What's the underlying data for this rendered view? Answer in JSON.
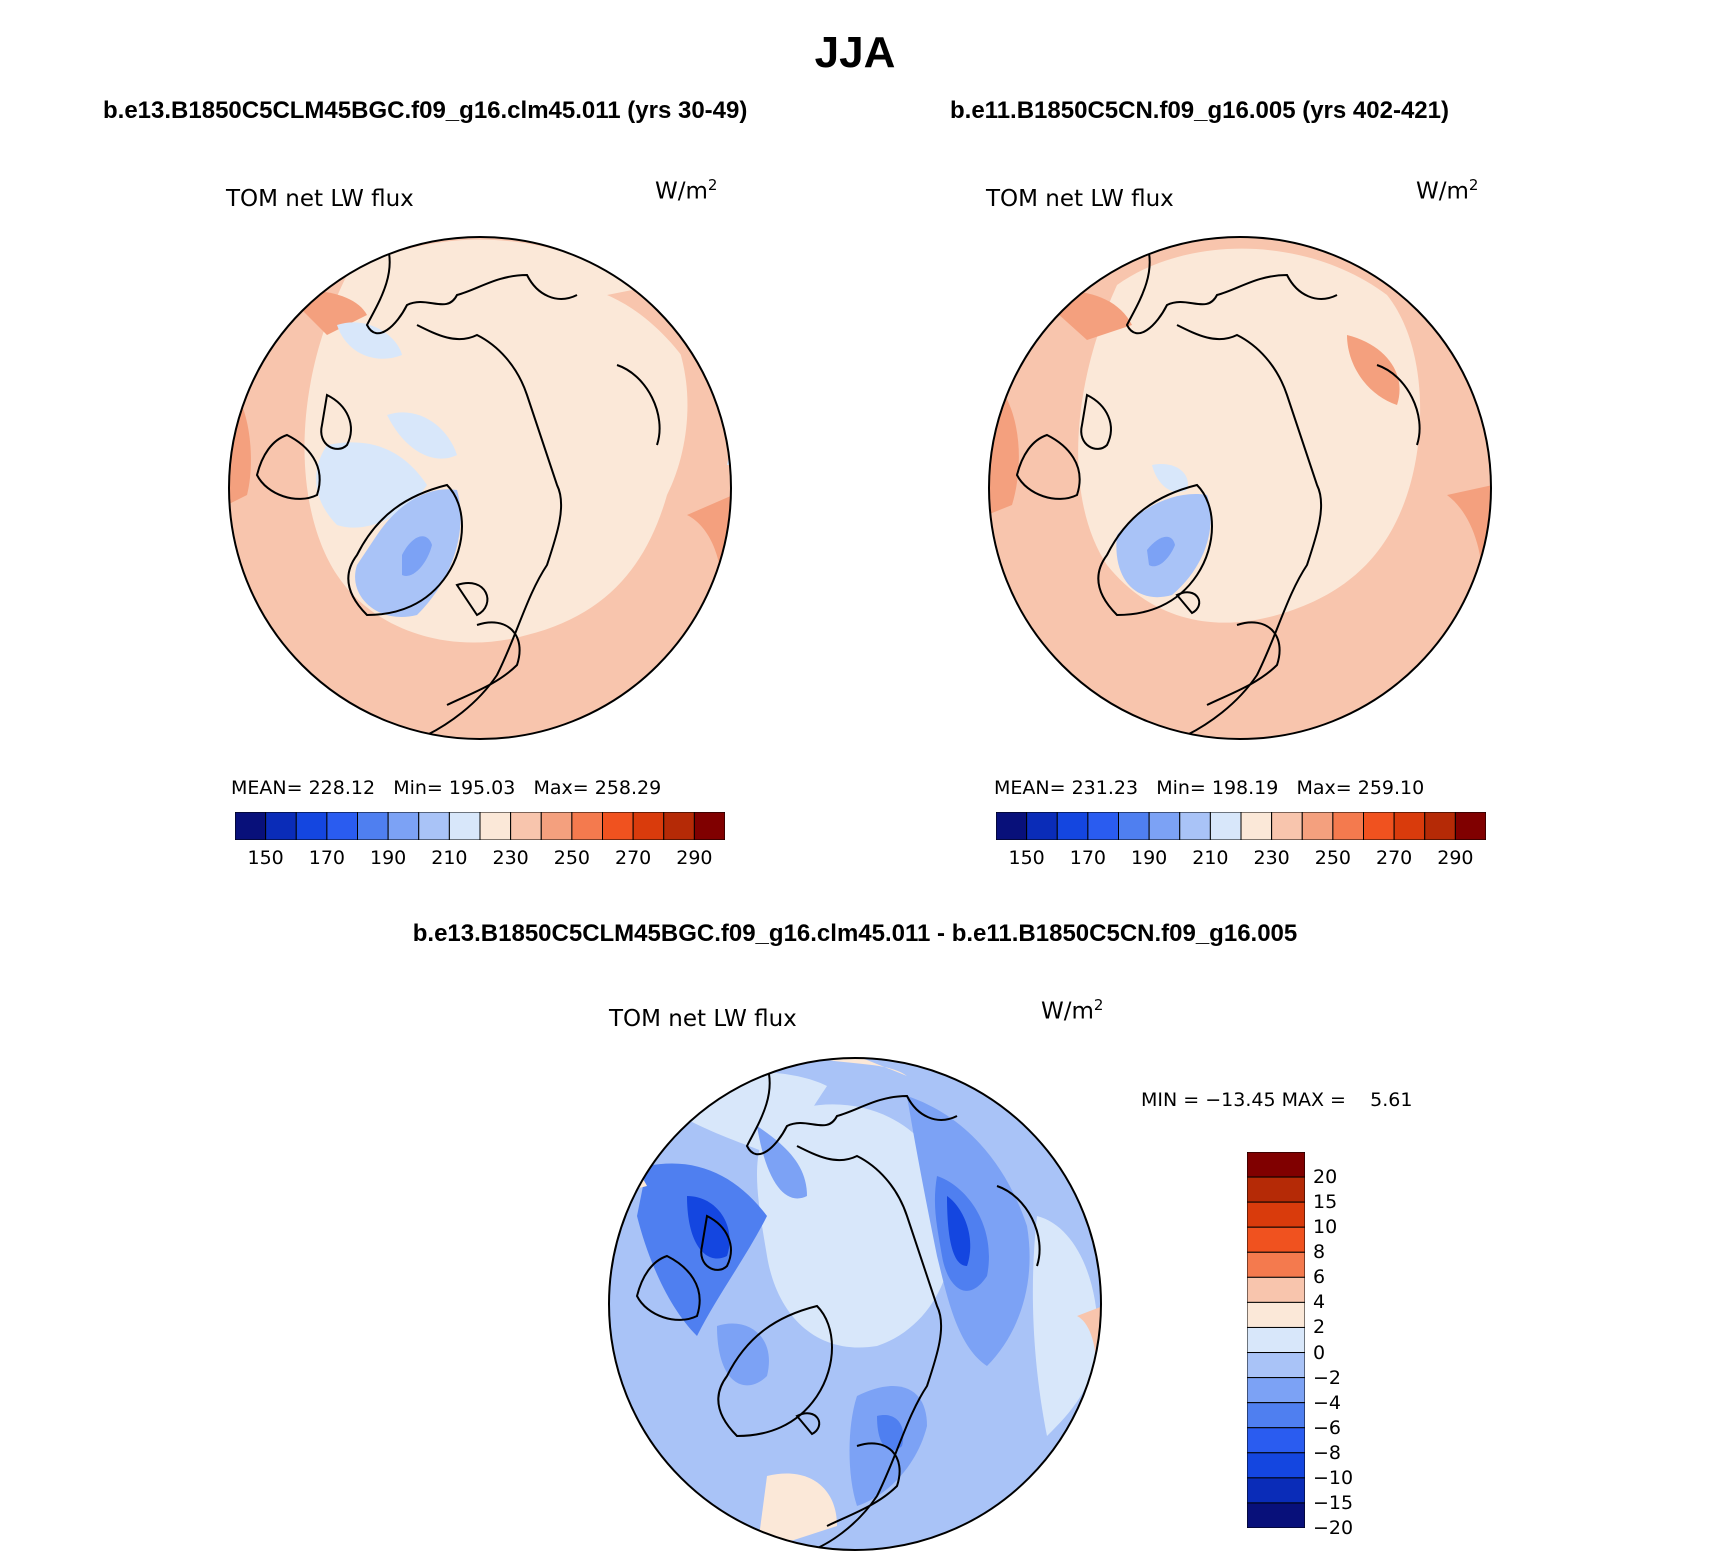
{
  "figure": {
    "title": "JJA",
    "units_label": "W/m",
    "units_exponent": "2",
    "variable_label": "TOM net LW flux"
  },
  "panels": [
    {
      "case": "b.e13.B1850C5CLM45BGC.f09_g16.clm45.011 (yrs 30-49)",
      "stats": {
        "mean_label": "MEAN=",
        "mean": "228.12",
        "min_label": "Min=",
        "min": "195.03",
        "max_label": "Max=",
        "max": "258.29"
      }
    },
    {
      "case": "b.e11.B1850C5CN.f09_g16.005 (yrs 402-421)",
      "stats": {
        "mean_label": "MEAN=",
        "mean": "231.23",
        "min_label": "Min=",
        "min": "198.19",
        "max_label": "Max=",
        "max": "259.10"
      }
    }
  ],
  "difference": {
    "title": "b.e13.B1850C5CLM45BGC.f09_g16.clm45.011 - b.e11.B1850C5CN.f09_g16.005",
    "min_label": "MIN =",
    "min": "−13.45",
    "max_label": "MAX =",
    "max": "5.61"
  },
  "colorbar_abs": {
    "colors": [
      "#08107a",
      "#0a2cb8",
      "#1446e0",
      "#2a5cf0",
      "#4f7ff0",
      "#7ca2f5",
      "#a9c3f7",
      "#d8e7fa",
      "#fbe8d8",
      "#f8c5ad",
      "#f4a07e",
      "#f47a4e",
      "#f0521f",
      "#d93b0c",
      "#b52a06",
      "#800000"
    ],
    "tick_labels": [
      "150",
      "170",
      "190",
      "210",
      "230",
      "250",
      "270",
      "290"
    ]
  },
  "colorbar_diff": {
    "colors": [
      "#08107a",
      "#0a2cb8",
      "#1446e0",
      "#2a5cf0",
      "#4f7ff0",
      "#7ca2f5",
      "#a9c3f7",
      "#d8e7fa",
      "#fbe8d8",
      "#f8c5ad",
      "#f47a4e",
      "#f0521f",
      "#d93b0c",
      "#b52a06",
      "#800000"
    ],
    "tick_labels": [
      "20",
      "15",
      "10",
      "8",
      "6",
      "4",
      "2",
      "0",
      "−2",
      "−4",
      "−6",
      "−8",
      "−10",
      "−15",
      "−20"
    ]
  },
  "chart_data": {
    "type": "heatmap",
    "projection": "north polar stereographic",
    "season": "JJA",
    "variable": "TOM net LW flux",
    "units": "W/m2",
    "abs_levels": [
      150,
      160,
      170,
      180,
      190,
      200,
      210,
      220,
      230,
      240,
      250,
      260,
      270,
      280,
      290
    ],
    "diff_levels": [
      -20,
      -15,
      -10,
      -8,
      -6,
      -4,
      -2,
      0,
      2,
      4,
      6,
      8,
      10,
      15,
      20
    ]
  }
}
